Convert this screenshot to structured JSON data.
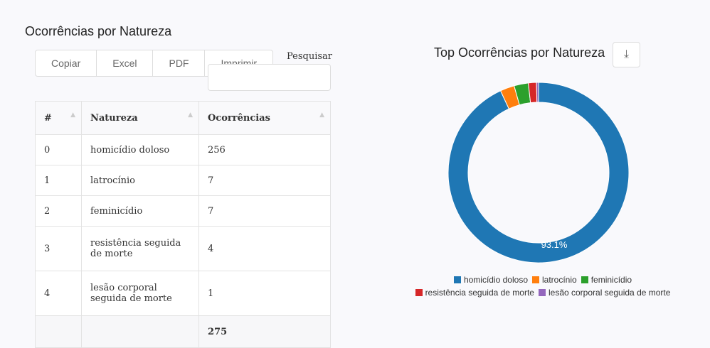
{
  "page": {
    "title": "Ocorrências por Natureza"
  },
  "toolbar": {
    "buttons": [
      "Copiar",
      "Excel",
      "PDF",
      "Imprimir"
    ],
    "search_label": "Pesquisar",
    "search_value": ""
  },
  "table": {
    "headers": [
      "#",
      "Natureza",
      "Ocorrências"
    ],
    "rows": [
      [
        "0",
        "homicídio doloso",
        "256"
      ],
      [
        "1",
        "latrocínio",
        "7"
      ],
      [
        "2",
        "feminicídio",
        "7"
      ],
      [
        "3",
        "resistência seguida de morte",
        "4"
      ],
      [
        "4",
        "lesão corporal seguida de morte",
        "1"
      ]
    ],
    "total": "275"
  },
  "chart_data": {
    "type": "pie",
    "title": "Top Ocorrências por Natureza",
    "donut": true,
    "labels": [
      "homicídio doloso",
      "latrocínio",
      "feminicídio",
      "resistência seguida de morte",
      "lesão corporal seguida de morte"
    ],
    "values": [
      256,
      7,
      7,
      4,
      1
    ],
    "colors": [
      "#1f77b4",
      "#ff7f0e",
      "#2ca02c",
      "#d62728",
      "#9467bd"
    ],
    "data_labels": [
      "93.1%"
    ],
    "legend_position": "bottom"
  }
}
